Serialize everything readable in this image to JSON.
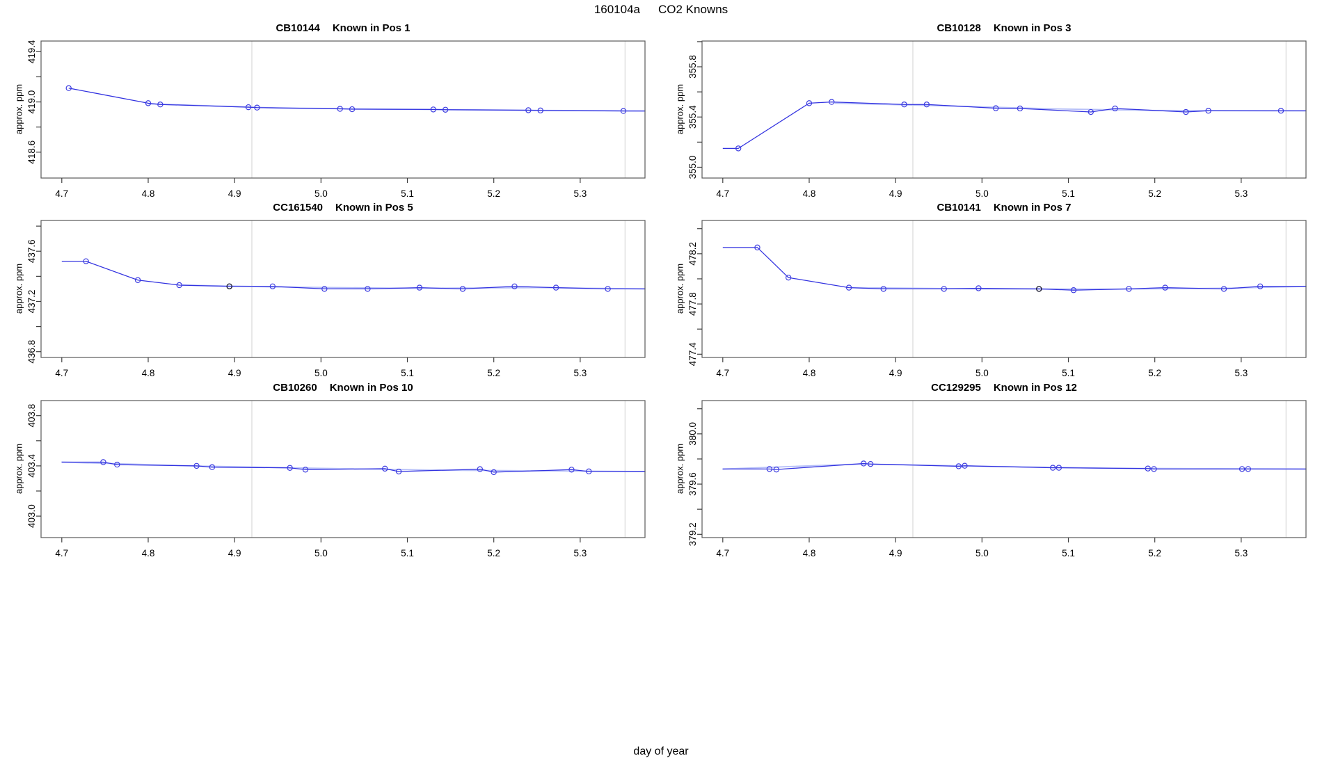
{
  "figure": {
    "title_run": "160104a",
    "title_main": "CO2 Knowns",
    "xlabel": "day of year",
    "colors": {
      "line": "#3232e0",
      "marker": "#3d3de0",
      "dark_marker": "#1a1a1a",
      "smooth": "#b7c0f8",
      "vline": "#e3e3e3",
      "box": "#595959",
      "tick": "#3f3f3f",
      "text": "#000000"
    }
  },
  "layout_note": "2 columns x 3 rows of line panels",
  "chart_data": [
    {
      "type": "line",
      "title_id": "CB10144",
      "title_pos": "Known in Pos 1",
      "ylabel": "approx. ppm",
      "xlim": [
        4.676,
        5.375
      ],
      "ylim": [
        418.394,
        419.485
      ],
      "xticks": [
        [
          4.7,
          "4.7"
        ],
        [
          4.8,
          "4.8"
        ],
        [
          4.9,
          "4.9"
        ],
        [
          5.0,
          "5.0"
        ],
        [
          5.1,
          "5.1"
        ],
        [
          5.2,
          "5.2"
        ],
        [
          5.3,
          "5.3"
        ]
      ],
      "yticks": [
        [
          418.6,
          "418.6"
        ],
        [
          418.8,
          ""
        ],
        [
          419.0,
          "419.0"
        ],
        [
          419.2,
          ""
        ],
        [
          419.4,
          "419.4"
        ]
      ],
      "vlines": [
        4.92,
        5.352
      ],
      "lead": null,
      "points": [
        [
          4.708,
          419.11
        ],
        [
          4.8,
          418.99
        ],
        [
          4.814,
          418.98
        ],
        [
          4.916,
          418.958
        ],
        [
          4.926,
          418.955
        ],
        [
          5.022,
          418.945
        ],
        [
          5.036,
          418.942
        ],
        [
          5.13,
          418.94
        ],
        [
          5.144,
          418.938
        ],
        [
          5.24,
          418.934
        ],
        [
          5.254,
          418.932
        ],
        [
          5.35,
          418.928
        ]
      ],
      "trail_x": 5.375,
      "smooth": [
        [
          4.8,
          418.985
        ],
        [
          4.95,
          418.952
        ],
        [
          5.1,
          418.941
        ],
        [
          5.25,
          418.933
        ],
        [
          5.375,
          418.928
        ]
      ],
      "black_points": []
    },
    {
      "type": "line",
      "title_id": "CB10128",
      "title_pos": "Known in Pos 3",
      "ylabel": "approx. ppm",
      "xlim": [
        4.676,
        5.375
      ],
      "ylim": [
        354.914,
        356.005
      ],
      "xticks": [
        [
          4.7,
          "4.7"
        ],
        [
          4.8,
          "4.8"
        ],
        [
          4.9,
          "4.9"
        ],
        [
          5.0,
          "5.0"
        ],
        [
          5.1,
          "5.1"
        ],
        [
          5.2,
          "5.2"
        ],
        [
          5.3,
          "5.3"
        ]
      ],
      "yticks": [
        [
          355.0,
          "355.0"
        ],
        [
          355.2,
          ""
        ],
        [
          355.4,
          "355.4"
        ],
        [
          355.6,
          ""
        ],
        [
          355.8,
          "355.8"
        ],
        [
          356.0,
          ""
        ]
      ],
      "vlines": [
        4.92,
        5.352
      ],
      "lead": [
        4.7,
        355.15
      ],
      "points": [
        [
          4.718,
          355.15
        ],
        [
          4.8,
          355.51
        ],
        [
          4.826,
          355.52
        ],
        [
          4.91,
          355.5
        ],
        [
          4.936,
          355.5
        ],
        [
          5.016,
          355.47
        ],
        [
          5.044,
          355.468
        ],
        [
          5.126,
          355.44
        ],
        [
          5.154,
          355.468
        ],
        [
          5.236,
          355.44
        ],
        [
          5.262,
          355.45
        ],
        [
          5.346,
          355.45
        ]
      ],
      "trail_x": 5.375,
      "smooth": [
        [
          4.83,
          355.51
        ],
        [
          4.95,
          355.49
        ],
        [
          5.08,
          355.465
        ],
        [
          5.2,
          355.452
        ],
        [
          5.375,
          355.449
        ]
      ],
      "black_points": []
    },
    {
      "type": "line",
      "title_id": "CC161540",
      "title_pos": "Known in Pos 5",
      "ylabel": "approx. ppm",
      "xlim": [
        4.676,
        5.375
      ],
      "ylim": [
        436.754,
        437.845
      ],
      "xticks": [
        [
          4.7,
          "4.7"
        ],
        [
          4.8,
          "4.8"
        ],
        [
          4.9,
          "4.9"
        ],
        [
          5.0,
          "5.0"
        ],
        [
          5.1,
          "5.1"
        ],
        [
          5.2,
          "5.2"
        ],
        [
          5.3,
          "5.3"
        ]
      ],
      "yticks": [
        [
          436.8,
          "436.8"
        ],
        [
          437.0,
          ""
        ],
        [
          437.2,
          "437.2"
        ],
        [
          437.4,
          ""
        ],
        [
          437.6,
          "437.6"
        ],
        [
          437.8,
          ""
        ]
      ],
      "vlines": [
        4.92,
        5.352
      ],
      "lead": [
        4.7,
        437.52
      ],
      "points": [
        [
          4.728,
          437.52
        ],
        [
          4.788,
          437.37
        ],
        [
          4.836,
          437.33
        ],
        [
          4.894,
          437.32
        ],
        [
          4.944,
          437.32
        ],
        [
          5.004,
          437.3
        ],
        [
          5.054,
          437.3
        ],
        [
          5.114,
          437.31
        ],
        [
          5.164,
          437.3
        ],
        [
          5.224,
          437.32
        ],
        [
          5.272,
          437.31
        ],
        [
          5.332,
          437.3
        ]
      ],
      "trail_x": 5.375,
      "smooth": [
        [
          4.84,
          437.33
        ],
        [
          4.95,
          437.315
        ],
        [
          5.1,
          437.305
        ],
        [
          5.25,
          437.31
        ],
        [
          5.375,
          437.3
        ]
      ],
      "black_points": [
        [
          4.894,
          437.32
        ]
      ]
    },
    {
      "type": "line",
      "title_id": "CB10141",
      "title_pos": "Known in Pos 7",
      "ylabel": "approx. ppm",
      "xlim": [
        4.676,
        5.375
      ],
      "ylim": [
        477.374,
        478.465
      ],
      "xticks": [
        [
          4.7,
          "4.7"
        ],
        [
          4.8,
          "4.8"
        ],
        [
          4.9,
          "4.9"
        ],
        [
          5.0,
          "5.0"
        ],
        [
          5.1,
          "5.1"
        ],
        [
          5.2,
          "5.2"
        ],
        [
          5.3,
          "5.3"
        ]
      ],
      "yticks": [
        [
          477.4,
          "477.4"
        ],
        [
          477.6,
          ""
        ],
        [
          477.8,
          "477.8"
        ],
        [
          478.0,
          ""
        ],
        [
          478.2,
          "478.2"
        ],
        [
          478.4,
          ""
        ]
      ],
      "vlines": [
        4.92,
        5.352
      ],
      "lead": [
        4.7,
        478.25
      ],
      "points": [
        [
          4.74,
          478.25
        ],
        [
          4.776,
          478.01
        ],
        [
          4.846,
          477.93
        ],
        [
          4.886,
          477.92
        ],
        [
          4.956,
          477.92
        ],
        [
          4.996,
          477.925
        ],
        [
          5.066,
          477.92
        ],
        [
          5.106,
          477.91
        ],
        [
          5.17,
          477.92
        ],
        [
          5.212,
          477.93
        ],
        [
          5.28,
          477.92
        ],
        [
          5.322,
          477.94
        ]
      ],
      "trail_x": 5.375,
      "smooth": [
        [
          4.85,
          477.93
        ],
        [
          5.0,
          477.92
        ],
        [
          5.15,
          477.918
        ],
        [
          5.28,
          477.925
        ],
        [
          5.375,
          477.94
        ]
      ],
      "black_points": [
        [
          5.066,
          477.92
        ]
      ]
    },
    {
      "type": "line",
      "title_id": "CB10260",
      "title_pos": "Known in Pos 10",
      "ylabel": "approx. ppm",
      "xlim": [
        4.676,
        5.375
      ],
      "ylim": [
        402.829,
        403.92
      ],
      "xticks": [
        [
          4.7,
          "4.7"
        ],
        [
          4.8,
          "4.8"
        ],
        [
          4.9,
          "4.9"
        ],
        [
          5.0,
          "5.0"
        ],
        [
          5.1,
          "5.1"
        ],
        [
          5.2,
          "5.2"
        ],
        [
          5.3,
          "5.3"
        ]
      ],
      "yticks": [
        [
          403.0,
          "403.0"
        ],
        [
          403.2,
          ""
        ],
        [
          403.4,
          "403.4"
        ],
        [
          403.6,
          ""
        ],
        [
          403.8,
          "403.8"
        ]
      ],
      "vlines": [
        4.92,
        5.352
      ],
      "lead": [
        4.7,
        403.43
      ],
      "points": [
        [
          4.748,
          403.43
        ],
        [
          4.764,
          403.41
        ],
        [
          4.856,
          403.4
        ],
        [
          4.874,
          403.39
        ],
        [
          4.964,
          403.384
        ],
        [
          4.982,
          403.37
        ],
        [
          5.074,
          403.378
        ],
        [
          5.09,
          403.355
        ],
        [
          5.184,
          403.374
        ],
        [
          5.2,
          403.35
        ],
        [
          5.29,
          403.37
        ],
        [
          5.31,
          403.356
        ]
      ],
      "trail_x": 5.375,
      "smooth": [
        [
          4.7,
          403.43
        ],
        [
          4.85,
          403.4
        ],
        [
          5.0,
          403.38
        ],
        [
          5.15,
          403.365
        ],
        [
          5.375,
          403.355
        ]
      ],
      "black_points": []
    },
    {
      "type": "line",
      "title_id": "CC129295",
      "title_pos": "Known in Pos 12",
      "ylabel": "approx. ppm",
      "xlim": [
        4.676,
        5.375
      ],
      "ylim": [
        379.174,
        380.265
      ],
      "xticks": [
        [
          4.7,
          "4.7"
        ],
        [
          4.8,
          "4.8"
        ],
        [
          4.9,
          "4.9"
        ],
        [
          5.0,
          "5.0"
        ],
        [
          5.1,
          "5.1"
        ],
        [
          5.2,
          "5.2"
        ],
        [
          5.3,
          "5.3"
        ]
      ],
      "yticks": [
        [
          379.2,
          "379.2"
        ],
        [
          379.4,
          ""
        ],
        [
          379.6,
          "379.6"
        ],
        [
          379.8,
          ""
        ],
        [
          380.0,
          "380.0"
        ],
        [
          380.2,
          ""
        ]
      ],
      "vlines": [
        4.92,
        5.352
      ],
      "lead": [
        4.7,
        379.72
      ],
      "points": [
        [
          4.754,
          379.72
        ],
        [
          4.762,
          379.716
        ],
        [
          4.863,
          379.764
        ],
        [
          4.871,
          379.76
        ],
        [
          4.973,
          379.742
        ],
        [
          4.98,
          379.746
        ],
        [
          5.082,
          379.73
        ],
        [
          5.089,
          379.73
        ],
        [
          5.192,
          379.724
        ],
        [
          5.199,
          379.72
        ],
        [
          5.301,
          379.72
        ],
        [
          5.308,
          379.72
        ]
      ],
      "trail_x": 5.375,
      "smooth": [
        [
          4.7,
          379.72
        ],
        [
          4.86,
          379.76
        ],
        [
          5.0,
          379.742
        ],
        [
          5.15,
          379.726
        ],
        [
          5.375,
          379.72
        ]
      ],
      "black_points": []
    }
  ]
}
